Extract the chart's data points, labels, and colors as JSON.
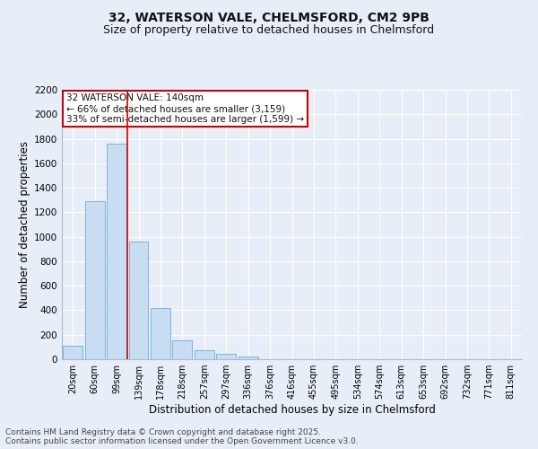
{
  "title_line1": "32, WATERSON VALE, CHELMSFORD, CM2 9PB",
  "title_line2": "Size of property relative to detached houses in Chelmsford",
  "xlabel": "Distribution of detached houses by size in Chelmsford",
  "ylabel": "Number of detached properties",
  "categories": [
    "20sqm",
    "60sqm",
    "99sqm",
    "139sqm",
    "178sqm",
    "218sqm",
    "257sqm",
    "297sqm",
    "336sqm",
    "376sqm",
    "416sqm",
    "455sqm",
    "495sqm",
    "534sqm",
    "574sqm",
    "613sqm",
    "653sqm",
    "692sqm",
    "732sqm",
    "771sqm",
    "811sqm"
  ],
  "values": [
    110,
    1290,
    1760,
    960,
    420,
    155,
    75,
    45,
    25,
    0,
    0,
    0,
    0,
    0,
    0,
    0,
    0,
    0,
    0,
    0,
    0
  ],
  "bar_color": "#c8ddf2",
  "bar_edge_color": "#6aaed6",
  "vline_x": 2.5,
  "vline_color": "#cc0000",
  "annotation_text": "32 WATERSON VALE: 140sqm\n← 66% of detached houses are smaller (3,159)\n33% of semi-detached houses are larger (1,599) →",
  "annotation_box_color": "#cc0000",
  "ylim": [
    0,
    2200
  ],
  "yticks": [
    0,
    200,
    400,
    600,
    800,
    1000,
    1200,
    1400,
    1600,
    1800,
    2000,
    2200
  ],
  "bg_color": "#e8eef8",
  "plot_bg_color": "#e8eef8",
  "grid_color": "#ffffff",
  "footer_line1": "Contains HM Land Registry data © Crown copyright and database right 2025.",
  "footer_line2": "Contains public sector information licensed under the Open Government Licence v3.0.",
  "title_fontsize": 10,
  "subtitle_fontsize": 9,
  "axis_label_fontsize": 8.5,
  "tick_fontsize": 7.5,
  "annotation_fontsize": 7.5,
  "footer_fontsize": 6.5
}
